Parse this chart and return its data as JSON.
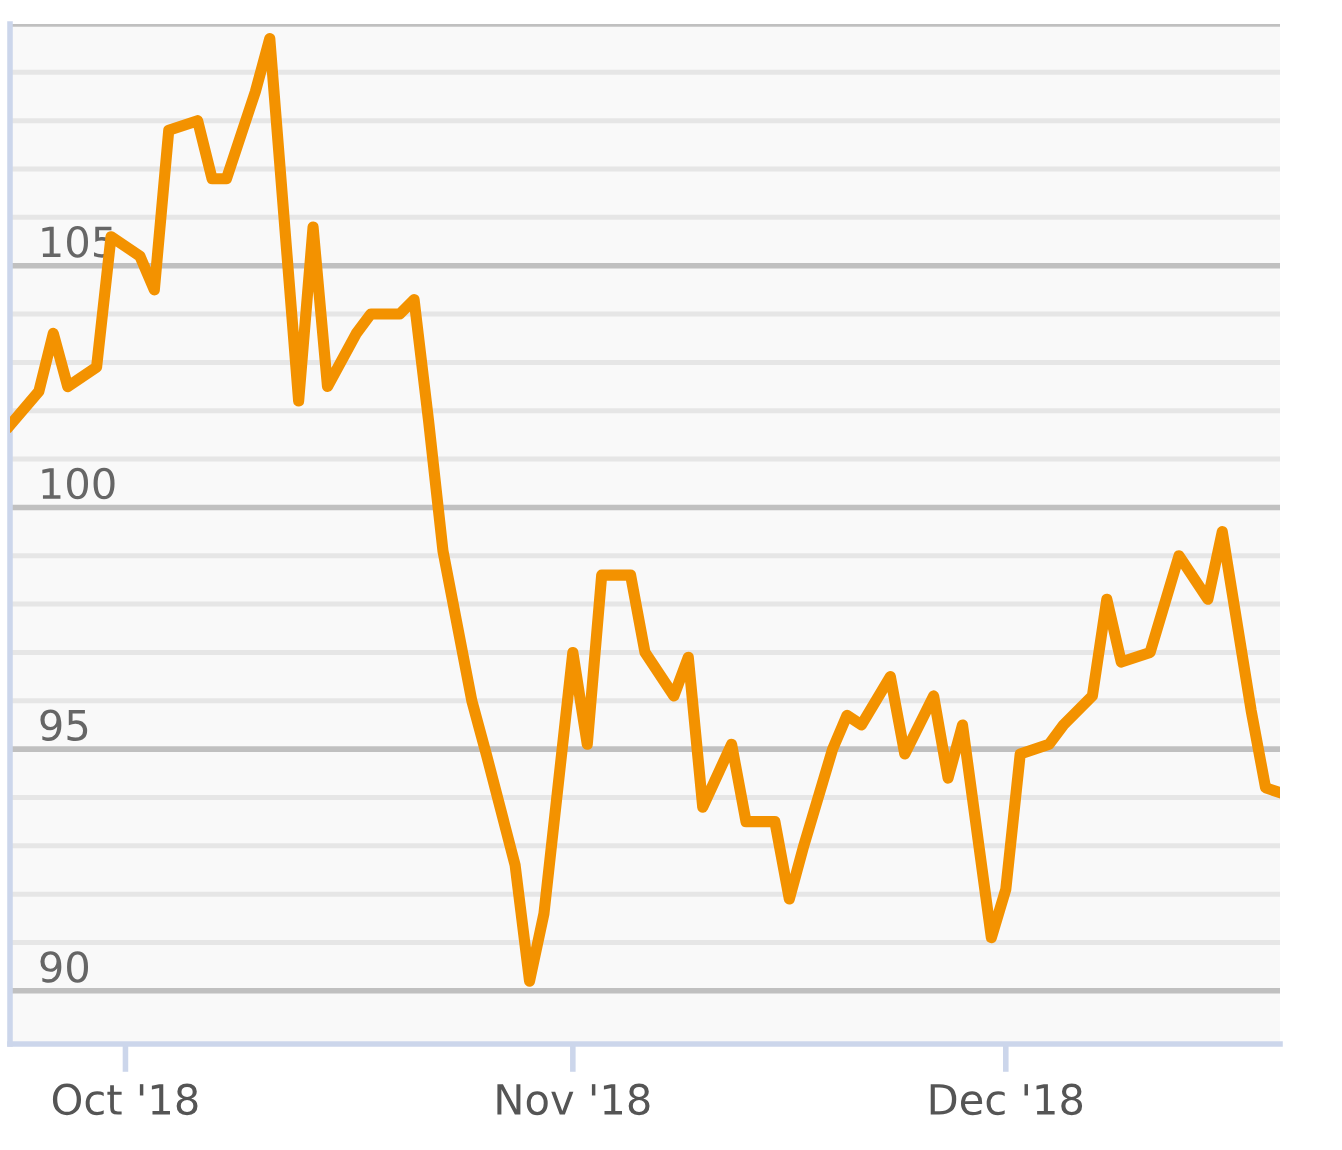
{
  "chart_data": {
    "type": "line",
    "x": [
      "2018-09-23",
      "2018-09-25",
      "2018-09-26",
      "2018-09-27",
      "2018-09-29",
      "2018-09-30",
      "2018-10-02",
      "2018-10-03",
      "2018-10-04",
      "2018-10-06",
      "2018-10-07",
      "2018-10-08",
      "2018-10-10",
      "2018-10-11",
      "2018-10-13",
      "2018-10-14",
      "2018-10-15",
      "2018-10-17",
      "2018-10-18",
      "2018-10-20",
      "2018-10-21",
      "2018-10-22",
      "2018-10-23",
      "2018-10-25",
      "2018-10-26",
      "2018-10-28",
      "2018-10-29",
      "2018-10-30",
      "2018-11-01",
      "2018-11-02",
      "2018-11-03",
      "2018-11-05",
      "2018-11-06",
      "2018-11-08",
      "2018-11-09",
      "2018-11-10",
      "2018-11-12",
      "2018-11-13",
      "2018-11-15",
      "2018-11-16",
      "2018-11-17",
      "2018-11-19",
      "2018-11-20",
      "2018-11-21",
      "2018-11-23",
      "2018-11-24",
      "2018-11-26",
      "2018-11-27",
      "2018-11-28",
      "2018-11-30",
      "2018-12-01",
      "2018-12-02",
      "2018-12-04",
      "2018-12-05",
      "2018-12-07",
      "2018-12-08",
      "2018-12-09",
      "2018-12-11",
      "2018-12-12",
      "2018-12-13",
      "2018-12-15",
      "2018-12-16",
      "2018-12-18",
      "2018-12-19",
      "2018-12-20"
    ],
    "series": [
      {
        "color": "#f39200",
        "values": [
          101.7,
          102.4,
          103.6,
          102.5,
          102.9,
          105.6,
          105.2,
          104.5,
          107.8,
          108.0,
          106.8,
          106.8,
          108.6,
          109.7,
          102.2,
          105.8,
          102.5,
          103.6,
          104.0,
          104.0,
          104.3,
          101.8,
          99.1,
          96.0,
          94.9,
          92.6,
          90.2,
          91.6,
          97.0,
          95.1,
          98.6,
          98.6,
          97.0,
          96.1,
          96.9,
          93.8,
          95.1,
          93.5,
          93.5,
          91.9,
          93.0,
          95.0,
          95.7,
          95.5,
          96.5,
          94.9,
          96.1,
          94.4,
          95.5,
          91.1,
          92.1,
          94.9,
          95.1,
          95.5,
          96.1,
          98.1,
          96.8,
          97.0,
          98.0,
          99.0,
          98.1,
          99.5,
          95.8,
          94.2,
          94.1
        ]
      }
    ],
    "xlim": [
      "2018-09-23",
      "2018-12-20"
    ],
    "xticks": [
      {
        "value": "2018-10-01",
        "label": "Oct '18"
      },
      {
        "value": "2018-11-01",
        "label": "Nov '18"
      },
      {
        "value": "2018-12-01",
        "label": "Dec '18"
      }
    ],
    "ylim": [
      88.9,
      110
    ],
    "yticks": [
      90,
      {
        "value": 91,
        "label": null
      },
      {
        "value": 92,
        "label": null
      },
      {
        "value": 93,
        "label": null
      },
      {
        "value": 94,
        "label": null
      },
      95,
      {
        "value": 96,
        "label": null
      },
      {
        "value": 97,
        "label": null
      },
      {
        "value": 98,
        "label": null
      },
      {
        "value": 99,
        "label": null
      },
      100,
      {
        "value": 101,
        "label": null
      },
      {
        "value": 102,
        "label": null
      },
      {
        "value": 103,
        "label": null
      },
      {
        "value": 104,
        "label": null
      },
      105,
      {
        "value": 106,
        "label": null
      },
      {
        "value": 107,
        "label": null
      },
      {
        "value": 108,
        "label": null
      },
      {
        "value": 109,
        "label": null
      },
      {
        "value": 110,
        "label": null
      }
    ],
    "grid": "y",
    "legend": false,
    "marker": "none",
    "line_style": "solid"
  }
}
